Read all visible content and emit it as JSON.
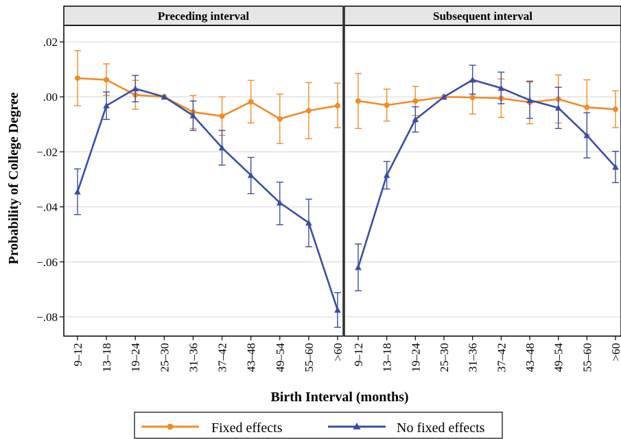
{
  "chart_data": {
    "type": "line",
    "ylabel": "Probability of College Degree",
    "xlabel": "Birth Interval (months)",
    "categories": [
      "9–12",
      "13–18",
      "19–24",
      "25–30",
      "31–36",
      "37–42",
      "43–48",
      "49–54",
      "55–60",
      ">60"
    ],
    "yticks": [
      0.02,
      0.0,
      -0.02,
      -0.04,
      -0.06,
      -0.08
    ],
    "ytick_labels": [
      ".02",
      ".00",
      "−.02",
      "−.04",
      "−.06",
      "−.08"
    ],
    "ylim": [
      -0.087,
      0.026
    ],
    "grid": true,
    "legend": {
      "placement": "bottom",
      "entries": [
        "Fixed effects",
        "No fixed effects"
      ]
    },
    "colors": {
      "fixed_effects": "#f08c28",
      "no_fixed_effects": "#3a4ea3",
      "panel_header": "#e6e6e6",
      "grid": "#dcdcdc"
    },
    "panels": [
      {
        "title": "Preceding interval",
        "series": [
          {
            "name": "Fixed effects",
            "marker": "circle",
            "values": [
              0.0068,
              0.0062,
              0.0007,
              0.0,
              -0.0055,
              -0.007,
              -0.0018,
              -0.008,
              -0.005,
              -0.0032
            ],
            "ci_low": [
              -0.0032,
              0.0005,
              -0.0045,
              0.0,
              -0.0115,
              -0.014,
              -0.0095,
              -0.017,
              -0.0152,
              -0.0112
            ],
            "ci_high": [
              0.0168,
              0.012,
              0.006,
              0.0,
              0.0005,
              0.0,
              0.006,
              0.001,
              0.0052,
              0.005
            ]
          },
          {
            "name": "No fixed effects",
            "marker": "triangle",
            "values": [
              -0.0345,
              -0.0032,
              0.003,
              0.0,
              -0.0068,
              -0.0185,
              -0.0285,
              -0.0385,
              -0.0458,
              -0.0775
            ],
            "ci_low": [
              -0.0428,
              -0.0082,
              -0.0018,
              0.0,
              -0.0122,
              -0.0248,
              -0.0352,
              -0.0465,
              -0.0545,
              -0.0838
            ],
            "ci_high": [
              -0.0262,
              0.0018,
              0.0078,
              0.0,
              -0.0015,
              -0.0122,
              -0.022,
              -0.031,
              -0.0372,
              -0.0712
            ]
          }
        ]
      },
      {
        "title": "Subsequent interval",
        "series": [
          {
            "name": "Fixed effects",
            "marker": "circle",
            "values": [
              -0.0015,
              -0.003,
              -0.0015,
              0.0,
              -0.0002,
              -0.0005,
              -0.002,
              -0.0008,
              -0.0038,
              -0.0045
            ],
            "ci_low": [
              -0.0115,
              -0.0088,
              -0.0068,
              0.0,
              -0.0062,
              -0.0075,
              -0.0098,
              -0.0095,
              -0.0138,
              -0.0112
            ],
            "ci_high": [
              0.0085,
              0.0028,
              0.0038,
              0.0,
              0.0058,
              0.0065,
              0.0058,
              0.008,
              0.0062,
              0.0022
            ]
          },
          {
            "name": "No fixed effects",
            "marker": "triangle",
            "values": [
              -0.062,
              -0.0285,
              -0.0082,
              0.0,
              0.0062,
              0.0032,
              -0.0012,
              -0.004,
              -0.014,
              -0.0255
            ],
            "ci_low": [
              -0.0705,
              -0.0335,
              -0.0128,
              0.0,
              0.001,
              -0.0025,
              -0.0078,
              -0.0115,
              -0.0222,
              -0.0312
            ],
            "ci_high": [
              -0.0535,
              -0.0235,
              -0.0036,
              0.0,
              0.0115,
              0.009,
              0.0055,
              0.0035,
              -0.0058,
              -0.0198
            ]
          }
        ]
      }
    ]
  }
}
